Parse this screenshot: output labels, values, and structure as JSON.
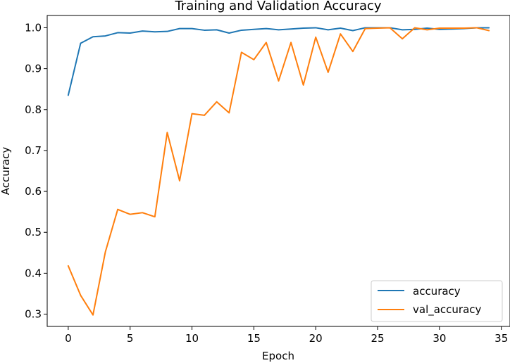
{
  "chart_data": {
    "type": "line",
    "title": "Training and Validation Accuracy",
    "xlabel": "Epoch",
    "ylabel": "Accuracy",
    "xlim": [
      -1.7,
      35.7
    ],
    "ylim": [
      0.27,
      1.03
    ],
    "xticks": [
      0,
      5,
      10,
      15,
      20,
      25,
      30,
      35
    ],
    "yticks": [
      0.3,
      0.4,
      0.5,
      0.6,
      0.7,
      0.8,
      0.9,
      1.0
    ],
    "ytick_labels": [
      "0.3",
      "0.4",
      "0.5",
      "0.6",
      "0.7",
      "0.8",
      "0.9",
      "1.0"
    ],
    "grid": false,
    "legend_position": "lower-right",
    "x": [
      0,
      1,
      2,
      3,
      4,
      5,
      6,
      7,
      8,
      9,
      10,
      11,
      12,
      13,
      14,
      15,
      16,
      17,
      18,
      19,
      20,
      21,
      22,
      23,
      24,
      25,
      26,
      27,
      28,
      29,
      30,
      31,
      32,
      33,
      34
    ],
    "series": [
      {
        "name": "accuracy",
        "color": "#1f77b4",
        "values": [
          0.835,
          0.962,
          0.978,
          0.98,
          0.988,
          0.987,
          0.992,
          0.99,
          0.991,
          0.998,
          0.998,
          0.994,
          0.995,
          0.987,
          0.994,
          0.996,
          0.998,
          0.995,
          0.997,
          0.999,
          1.0,
          0.995,
          0.999,
          0.993,
          1.0,
          1.0,
          1.0,
          0.995,
          0.996,
          0.999,
          0.996,
          0.997,
          0.998,
          1.0,
          1.0
        ]
      },
      {
        "name": "val_accuracy",
        "color": "#ff7f0e",
        "values": [
          0.418,
          0.346,
          0.298,
          0.452,
          0.556,
          0.544,
          0.548,
          0.538,
          0.744,
          0.626,
          0.79,
          0.786,
          0.819,
          0.792,
          0.94,
          0.922,
          0.964,
          0.87,
          0.964,
          0.86,
          0.977,
          0.891,
          0.985,
          0.942,
          0.998,
          0.999,
          1.0,
          0.973,
          1.0,
          0.995,
          0.999,
          0.999,
          0.999,
          1.0,
          0.993
        ]
      }
    ]
  }
}
